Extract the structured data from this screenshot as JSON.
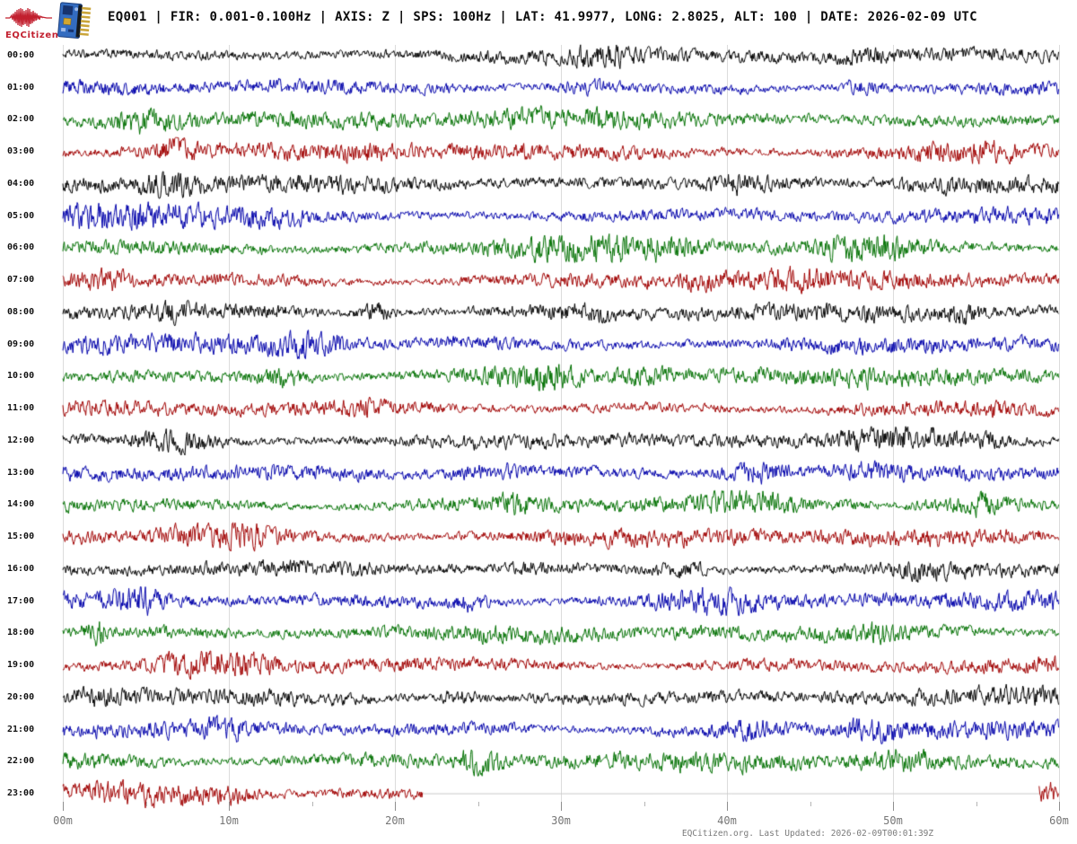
{
  "header": {
    "logo_text": "EQCitizen",
    "logo_color": "#c2202f",
    "title": "EQ001 | FIR: 0.001-0.100Hz | AXIS: Z | SPS: 100Hz | LAT: 41.9977, LONG: 2.8025, ALT: 100 | DATE: 2026-02-09 UTC"
  },
  "footer": {
    "text": "EQCitizen.org. Last Updated: 2026-02-09T00:01:39Z"
  },
  "chart_data": {
    "type": "line",
    "variant": "helicorder-day-plot",
    "station": "EQ001",
    "filter_hz": "0.001-0.100",
    "axis": "Z",
    "sample_rate": "100Hz",
    "latitude": "41.9977",
    "longitude": "2.8025",
    "altitude": "100",
    "date_utc": "2026-02-09",
    "minutes_per_row": 60,
    "grid_on": true,
    "grid_color": "#dcdcdc",
    "tick_color": "#8f8f8f",
    "minor_tick_color": "#b5b5b5",
    "trace_color_cycle": [
      "#000000",
      "#0000AA",
      "#007000",
      "#A00000"
    ],
    "x_axis": {
      "ticks": [
        {
          "label": "00m",
          "minute": 0
        },
        {
          "label": "10m",
          "minute": 10
        },
        {
          "label": "20m",
          "minute": 20
        },
        {
          "label": "30m",
          "minute": 30
        },
        {
          "label": "40m",
          "minute": 40
        },
        {
          "label": "50m",
          "minute": 50
        },
        {
          "label": "60m",
          "minute": 60
        }
      ],
      "minor_tick_minutes": [
        5,
        15,
        25,
        35,
        45,
        55
      ]
    },
    "rows": [
      {
        "hour_label": "00:00",
        "color": "#000000"
      },
      {
        "hour_label": "01:00",
        "color": "#0000AA"
      },
      {
        "hour_label": "02:00",
        "color": "#007000"
      },
      {
        "hour_label": "03:00",
        "color": "#A00000"
      },
      {
        "hour_label": "04:00",
        "color": "#000000"
      },
      {
        "hour_label": "05:00",
        "color": "#0000AA"
      },
      {
        "hour_label": "06:00",
        "color": "#007000"
      },
      {
        "hour_label": "07:00",
        "color": "#A00000"
      },
      {
        "hour_label": "08:00",
        "color": "#000000"
      },
      {
        "hour_label": "09:00",
        "color": "#0000AA"
      },
      {
        "hour_label": "10:00",
        "color": "#007000"
      },
      {
        "hour_label": "11:00",
        "color": "#A00000"
      },
      {
        "hour_label": "12:00",
        "color": "#000000"
      },
      {
        "hour_label": "13:00",
        "color": "#0000AA"
      },
      {
        "hour_label": "14:00",
        "color": "#007000"
      },
      {
        "hour_label": "15:00",
        "color": "#A00000"
      },
      {
        "hour_label": "16:00",
        "color": "#000000"
      },
      {
        "hour_label": "17:00",
        "color": "#0000AA"
      },
      {
        "hour_label": "18:00",
        "color": "#007000"
      },
      {
        "hour_label": "19:00",
        "color": "#A00000"
      },
      {
        "hour_label": "20:00",
        "color": "#000000"
      },
      {
        "hour_label": "21:00",
        "color": "#0000AA"
      },
      {
        "hour_label": "22:00",
        "color": "#007000"
      },
      {
        "hour_label": "23:00",
        "color": "#A00000"
      }
    ],
    "last_row": {
      "data_end_minute": 21.7,
      "gap_line_color": "#c9c9c9",
      "tail_start_minute": 58.8
    }
  }
}
